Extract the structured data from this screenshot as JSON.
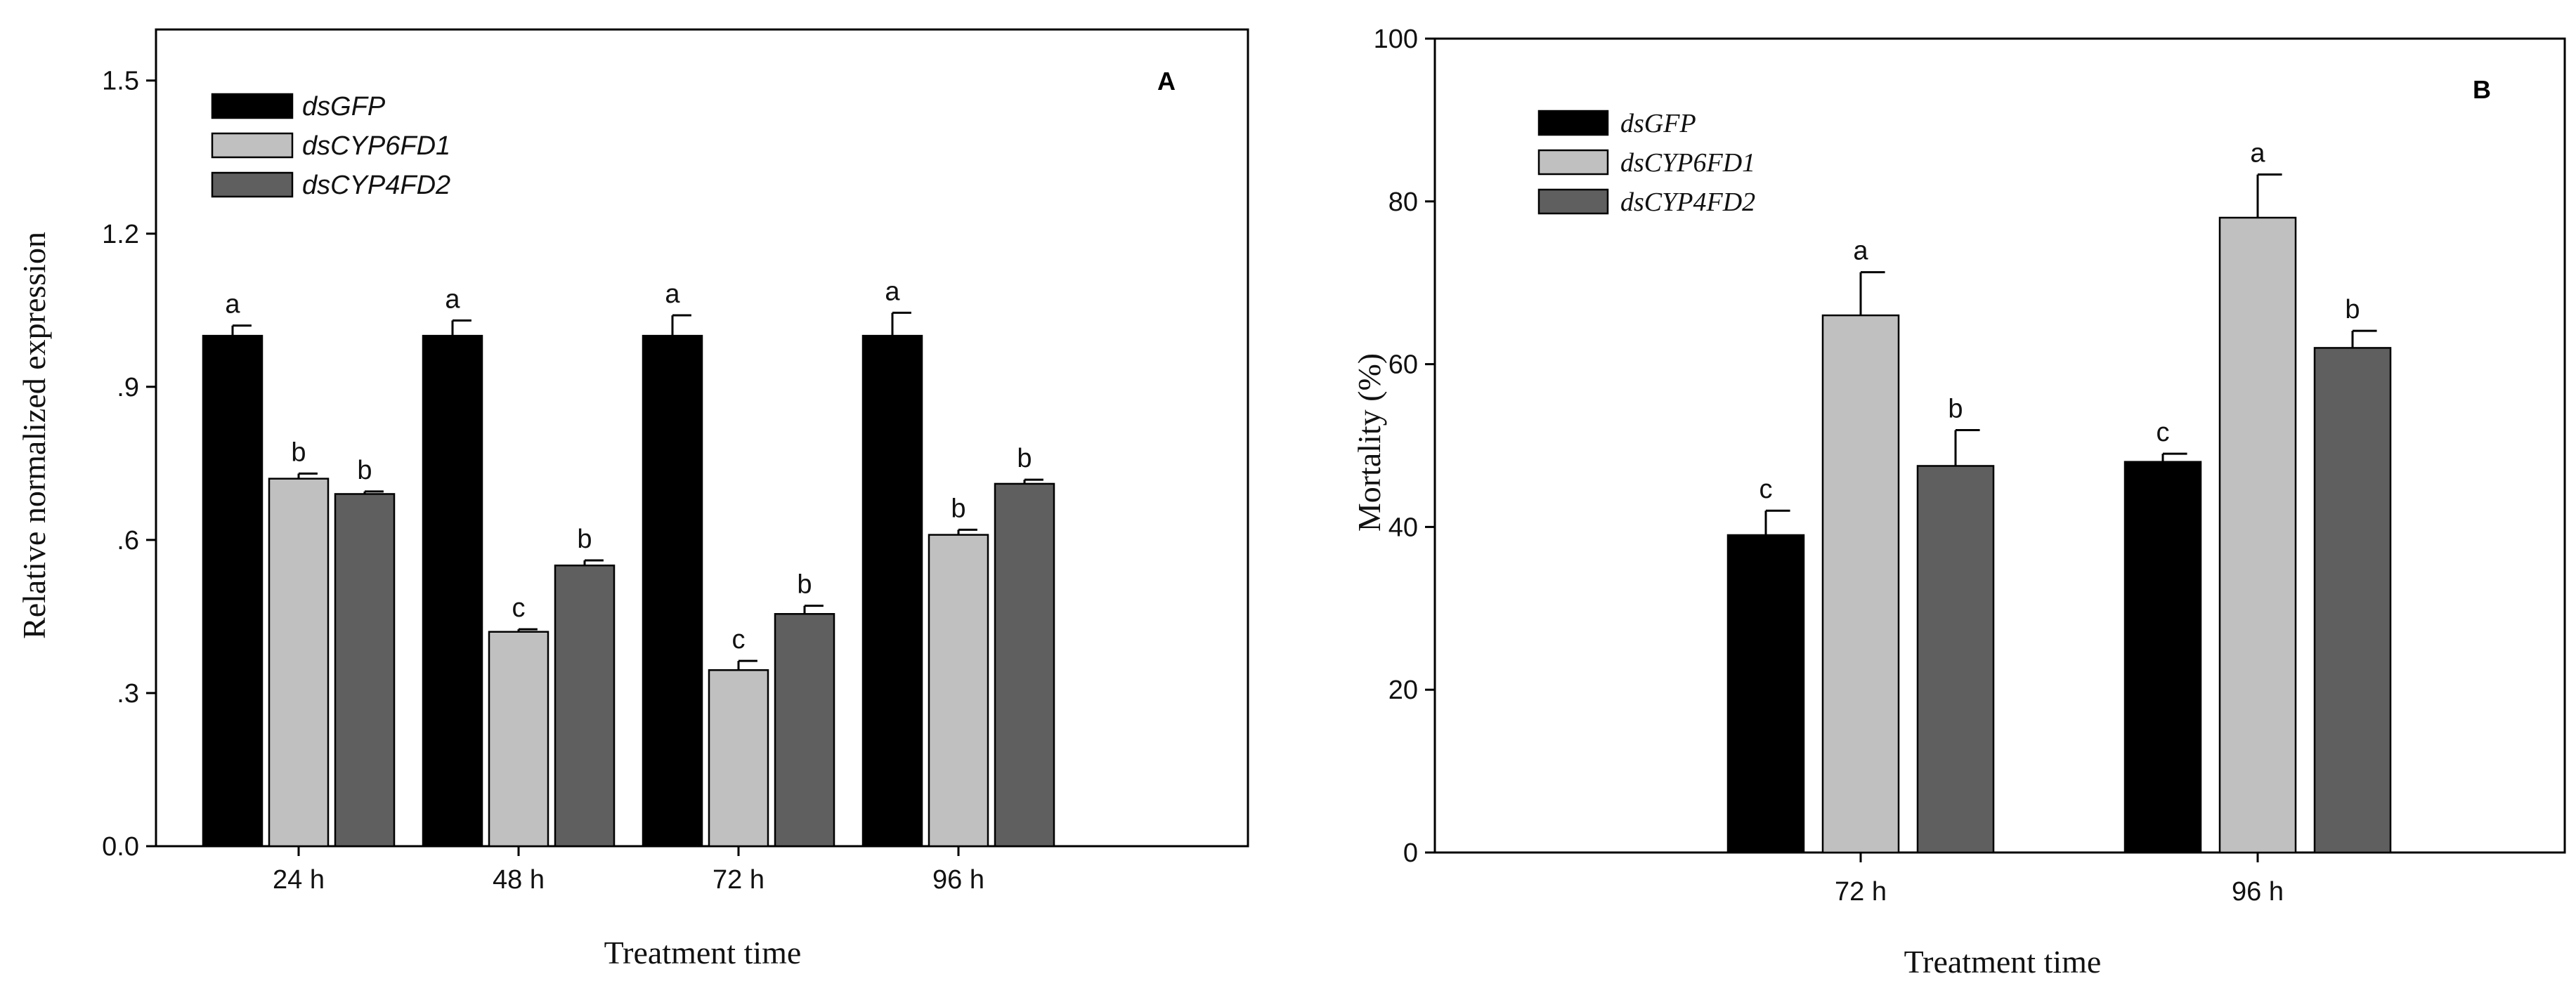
{
  "colors": {
    "dsGFP": "#000000",
    "dsCYP6FD1": "#c0c0c0",
    "dsCYP4FD2": "#5f5f5f",
    "axis": "#000000"
  },
  "chart_data": [
    {
      "type": "bar",
      "panel_label": "A",
      "title": "",
      "xlabel": "Treatment time",
      "ylabel": "Relative normalized expression",
      "ylim": [
        0,
        1.6
      ],
      "yticks": [
        0.0,
        0.3,
        0.6,
        0.9,
        1.2,
        1.5
      ],
      "ytick_labels": [
        "0.0",
        ".3",
        ".6",
        ".9",
        "1.2",
        "1.5"
      ],
      "categories": [
        "24 h",
        "48 h",
        "72 h",
        "96 h"
      ],
      "legend_position": "top-left",
      "grid": false,
      "series": [
        {
          "name": "dsGFP",
          "values": [
            1.0,
            1.0,
            1.0,
            1.0
          ],
          "errors": [
            0.02,
            0.03,
            0.04,
            0.045
          ],
          "letters": [
            "a",
            "a",
            "a",
            "a"
          ]
        },
        {
          "name": "dsCYP6FD1",
          "values": [
            0.72,
            0.42,
            0.345,
            0.61
          ],
          "errors": [
            0.01,
            0.005,
            0.018,
            0.01
          ],
          "letters": [
            "b",
            "c",
            "c",
            "b"
          ]
        },
        {
          "name": "dsCYP4FD2",
          "values": [
            0.69,
            0.55,
            0.455,
            0.71
          ],
          "errors": [
            0.005,
            0.01,
            0.016,
            0.008
          ],
          "letters": [
            "b",
            "b",
            "b",
            "b"
          ]
        }
      ]
    },
    {
      "type": "bar",
      "panel_label": "B",
      "title": "",
      "xlabel": "Treatment time",
      "ylabel": "Mortality (%)",
      "ylim": [
        0,
        100
      ],
      "yticks": [
        0,
        20,
        40,
        60,
        80,
        100
      ],
      "ytick_labels": [
        "0",
        "20",
        "40",
        "60",
        "80",
        "100"
      ],
      "categories": [
        "72 h",
        "96 h"
      ],
      "legend_position": "top-left",
      "grid": false,
      "series": [
        {
          "name": "dsGFP",
          "values": [
            39,
            48
          ],
          "errors": [
            3,
            1
          ],
          "letters": [
            "c",
            "c"
          ]
        },
        {
          "name": "dsCYP6FD1",
          "values": [
            66,
            78
          ],
          "errors": [
            5.3,
            5.3
          ],
          "letters": [
            "a",
            "a"
          ]
        },
        {
          "name": "dsCYP4FD2",
          "values": [
            47.5,
            62
          ],
          "errors": [
            4.4,
            2.1
          ],
          "letters": [
            "b",
            "b"
          ]
        }
      ]
    }
  ]
}
